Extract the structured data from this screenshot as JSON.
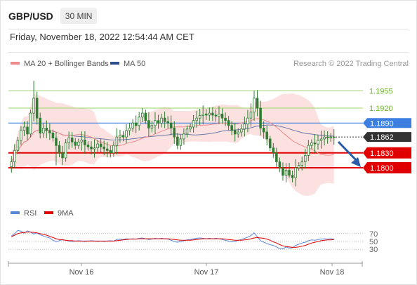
{
  "header": {
    "symbol": "GBP/USD",
    "timeframe": "30 MIN",
    "datetime": "Friday, November 18, 2022 12:54:44 AM CET"
  },
  "legend": {
    "ma20": "MA 20 + Bollinger Bands",
    "ma50": "MA 50",
    "credit": "Research © 2022 Trading Central",
    "rsi": "RSI",
    "rsi_ma": "9MA"
  },
  "colors": {
    "resistance": "#9fd36a",
    "current": "#3d7fe0",
    "support": "#e00000",
    "price_tag": "#333333",
    "band": "#fbdcdc",
    "ma20": "#f08a8a",
    "ma50": "#2f4f8f",
    "rsi": "#5b85d8",
    "rsi_ma": "#e00000",
    "candle": "#2e7d32",
    "arrow": "#2a5ba8"
  },
  "chart_data": [
    {
      "type": "candlestick",
      "ylim": [
        1.1745,
        1.1985
      ],
      "x_ticks": [
        "Nov 16",
        "Nov 17",
        "Nov 18"
      ],
      "levels": [
        {
          "label": "1.1955",
          "value": 1.1955,
          "kind": "resistance"
        },
        {
          "label": "1.1920",
          "value": 1.192,
          "kind": "resistance"
        },
        {
          "label": "1.1890",
          "value": 1.189,
          "kind": "current"
        },
        {
          "label": "1.1862",
          "value": 1.1862,
          "kind": "price"
        },
        {
          "label": "1.1830",
          "value": 1.183,
          "kind": "support"
        },
        {
          "label": "1.1800",
          "value": 1.18,
          "kind": "support"
        }
      ],
      "close": [
        1.1812,
        1.1835,
        1.1855,
        1.1875,
        1.1882,
        1.1868,
        1.191,
        1.194,
        1.19,
        1.187,
        1.188,
        1.1875,
        1.187,
        1.186,
        1.1845,
        1.183,
        1.182,
        1.185,
        1.186,
        1.1852,
        1.1845,
        1.1852,
        1.1856,
        1.1846,
        1.1842,
        1.1838,
        1.184,
        1.1848,
        1.1842,
        1.1838,
        1.1835,
        1.183,
        1.1845,
        1.1862,
        1.1865,
        1.1862,
        1.1875,
        1.188,
        1.189,
        1.1885,
        1.1902,
        1.191,
        1.1895,
        1.188,
        1.1885,
        1.1895,
        1.189,
        1.19,
        1.1893,
        1.189,
        1.188,
        1.1862,
        1.1845,
        1.1858,
        1.1868,
        1.1878,
        1.1882,
        1.1895,
        1.19,
        1.1905,
        1.1908,
        1.1906,
        1.191,
        1.1906,
        1.1904,
        1.1908,
        1.19,
        1.1895,
        1.1885,
        1.1875,
        1.1868,
        1.1872,
        1.1878,
        1.1888,
        1.19,
        1.1912,
        1.194,
        1.192,
        1.188,
        1.1872,
        1.1858,
        1.184,
        1.183,
        1.1812,
        1.18,
        1.1785,
        1.1795,
        1.1785,
        1.178,
        1.18,
        1.1805,
        1.1812,
        1.1825,
        1.1845,
        1.185,
        1.1848,
        1.1855,
        1.1858,
        1.1862,
        1.186,
        1.1862,
        1.1862
      ],
      "rsi": {
        "levels": [
          70,
          50,
          30
        ],
        "values": [
          64,
          70,
          78,
          76,
          71,
          77,
          74,
          69,
          72,
          67,
          64,
          61,
          59,
          53,
          50,
          52,
          55,
          53,
          51,
          50,
          51,
          52,
          51,
          50,
          51,
          52,
          51,
          50,
          51,
          50,
          51,
          52,
          51,
          55,
          56,
          55,
          57,
          56,
          57,
          56,
          58,
          59,
          57,
          55,
          56,
          58,
          57,
          58,
          57,
          56,
          53,
          50,
          48,
          50,
          52,
          54,
          55,
          57,
          58,
          59,
          58,
          57,
          58,
          57,
          58,
          57,
          55,
          53,
          51,
          49,
          50,
          53,
          55,
          58,
          61,
          65,
          72,
          62,
          52,
          48,
          45,
          42,
          40,
          36,
          32,
          31,
          36,
          33,
          34,
          40,
          43,
          46,
          48,
          52,
          54,
          53,
          55,
          56,
          57,
          56,
          57,
          56
        ],
        "ma": [
          62,
          66,
          70,
          72,
          73,
          74,
          74,
          73,
          72,
          70,
          68,
          66,
          63,
          60,
          57,
          55,
          54,
          53,
          52,
          52,
          51,
          51,
          51,
          51,
          51,
          51,
          51,
          51,
          51,
          51,
          51,
          51,
          51,
          52,
          53,
          54,
          55,
          56,
          56,
          56,
          57,
          57,
          57,
          57,
          57,
          57,
          57,
          57,
          57,
          57,
          56,
          55,
          54,
          53,
          53,
          53,
          53,
          54,
          55,
          56,
          57,
          57,
          57,
          57,
          57,
          57,
          57,
          56,
          55,
          54,
          53,
          53,
          53,
          54,
          55,
          57,
          59,
          60,
          59,
          58,
          56,
          53,
          49,
          46,
          42,
          39,
          37,
          36,
          35,
          35,
          36,
          38,
          40,
          43,
          46,
          48,
          50,
          52,
          53,
          54,
          54,
          55
        ]
      }
    }
  ]
}
